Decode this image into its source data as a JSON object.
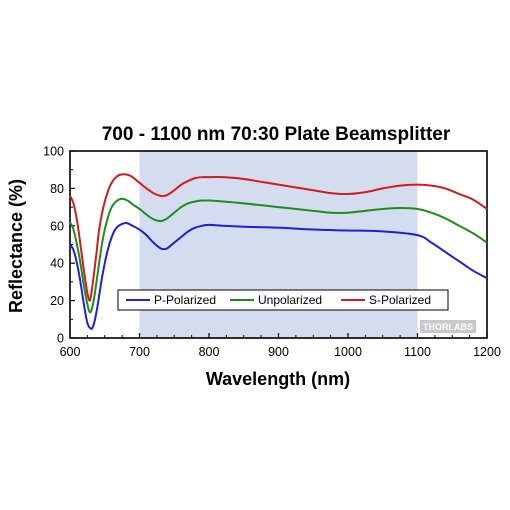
{
  "chart_data": {
    "type": "line",
    "title": "700 - 1100 nm 70:30 Plate Beamsplitter",
    "xlabel": "Wavelength (nm)",
    "ylabel": "Reflectance (%)",
    "xlim": [
      600,
      1200
    ],
    "ylim": [
      0,
      100
    ],
    "xticks": [
      600,
      700,
      800,
      900,
      1000,
      1100,
      1200
    ],
    "yticks": [
      0,
      20,
      40,
      60,
      80,
      100
    ],
    "highlight_band": [
      700,
      1100
    ],
    "grid": false,
    "legend_position": "bottom-center",
    "series": [
      {
        "name": "P-Polarized",
        "color": "#1f1fd6",
        "x": [
          600,
          605,
          610,
          615,
          620,
          625,
          630,
          633,
          636,
          640,
          645,
          650,
          655,
          660,
          665,
          670,
          675,
          680,
          685,
          690,
          700,
          710,
          720,
          730,
          735,
          740,
          750,
          760,
          770,
          780,
          790,
          800,
          820,
          850,
          900,
          950,
          1000,
          1050,
          1100,
          1120,
          1140,
          1160,
          1180,
          1200
        ],
        "y": [
          50,
          47,
          40,
          30,
          18,
          8,
          5,
          6,
          10,
          18,
          30,
          40,
          48,
          54,
          58,
          60,
          61,
          61.5,
          61,
          60,
          58,
          55,
          51,
          48,
          47.5,
          48,
          51,
          54,
          57,
          59,
          60,
          60.5,
          60,
          59.5,
          59,
          58,
          57.5,
          57,
          55,
          51,
          46,
          41,
          36,
          32
        ]
      },
      {
        "name": "Unpolarized",
        "color": "#1a8f1a",
        "x": [
          600,
          605,
          610,
          615,
          620,
          625,
          628,
          631,
          635,
          640,
          645,
          650,
          655,
          660,
          665,
          670,
          675,
          680,
          685,
          690,
          700,
          710,
          720,
          730,
          735,
          740,
          750,
          760,
          770,
          780,
          790,
          800,
          820,
          850,
          900,
          950,
          975,
          1000,
          1025,
          1050,
          1075,
          1100,
          1120,
          1140,
          1160,
          1180,
          1200
        ],
        "y": [
          62,
          58,
          50,
          40,
          28,
          18,
          14,
          15,
          22,
          35,
          48,
          58,
          65,
          70,
          72.5,
          74,
          74.5,
          74,
          73,
          71.5,
          69,
          66,
          63.5,
          62.5,
          63,
          64,
          67,
          70,
          72,
          73,
          73.5,
          73.5,
          73,
          72,
          70,
          68,
          67,
          67,
          68,
          69,
          69.5,
          69,
          67,
          64,
          60,
          56,
          51
        ]
      },
      {
        "name": "S-Polarized",
        "color": "#d41a1a",
        "x": [
          600,
          605,
          610,
          615,
          620,
          625,
          628,
          630,
          633,
          638,
          642,
          648,
          655,
          660,
          665,
          670,
          675,
          680,
          685,
          690,
          700,
          710,
          720,
          730,
          735,
          740,
          750,
          760,
          770,
          780,
          790,
          800,
          820,
          850,
          900,
          950,
          975,
          1000,
          1025,
          1050,
          1075,
          1100,
          1120,
          1140,
          1160,
          1180,
          1200
        ],
        "y": [
          76,
          72,
          63,
          50,
          36,
          24,
          20,
          22,
          30,
          45,
          58,
          70,
          79,
          83,
          85.5,
          87,
          87.5,
          87.5,
          87,
          86,
          83,
          80,
          77.5,
          76,
          76,
          76.5,
          79,
          82,
          84,
          85.5,
          86,
          86,
          86,
          85,
          82,
          79,
          77.5,
          77,
          78,
          80,
          81.5,
          82,
          81.5,
          80,
          77,
          74,
          69
        ]
      }
    ],
    "watermark": "THORLABS"
  }
}
